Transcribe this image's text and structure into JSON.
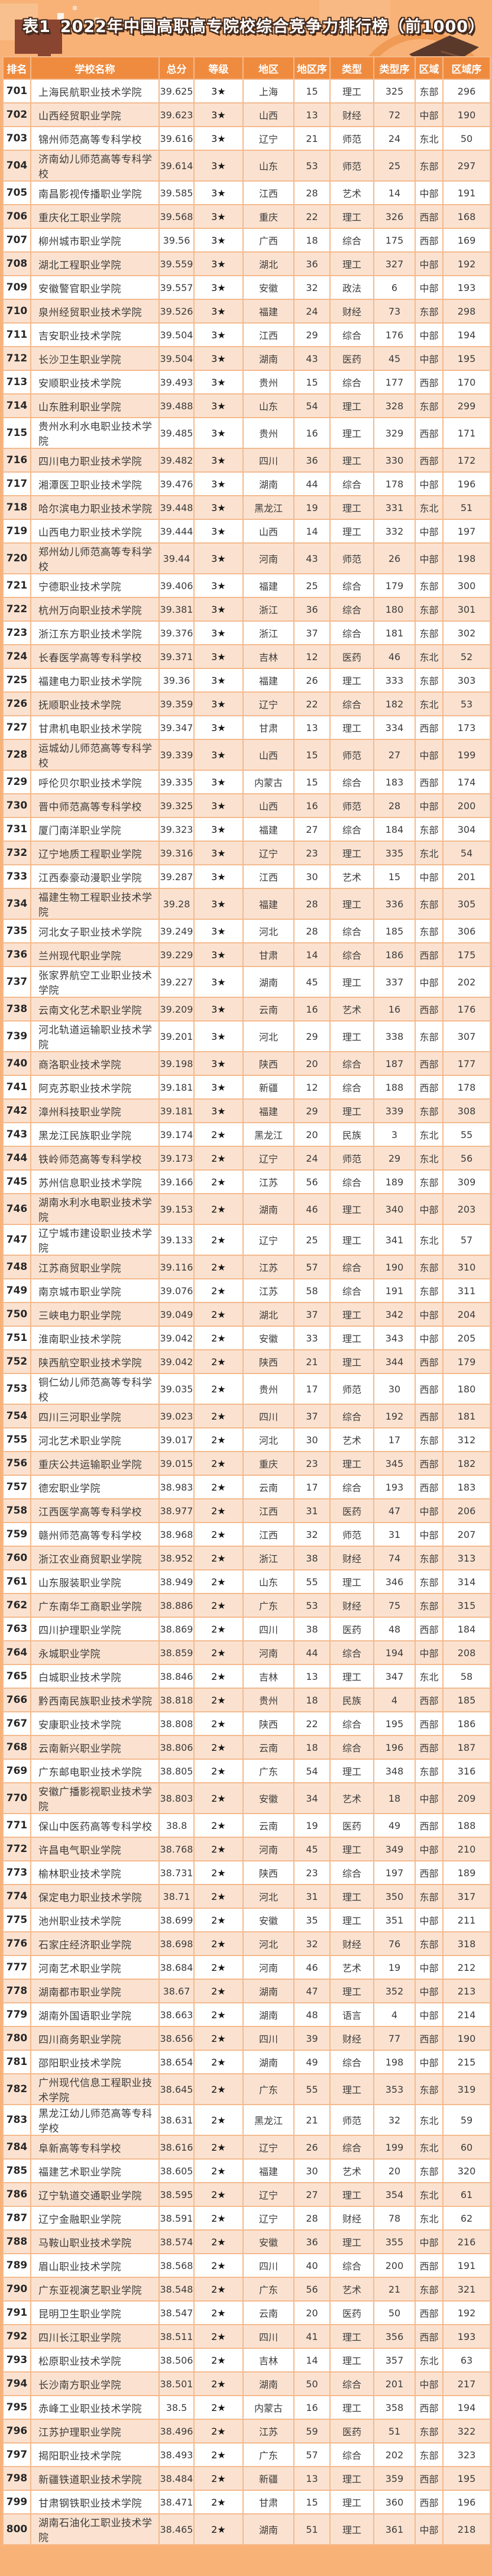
{
  "title_label": "表1",
  "title_text": "2022年中国高职高专院校综合竞争力排行榜（前1000）",
  "colors": {
    "banner_bg": "#F8B277",
    "header_bg": "#EF8B3F",
    "row_bg": "#FFFFFF",
    "row_alt_bg": "#FBE2D0",
    "border": "#F4BA8E",
    "title_fill": "#FFFFFF",
    "title_outline": "#462B1D",
    "label_block": "#8A4531",
    "cap": "#5A392B",
    "circle": "#F09B55",
    "text": "#3B3B3B"
  },
  "decorations": [
    "circle-decoration",
    "graduation-cap-icon",
    "pixel-squares",
    "title-label-block"
  ],
  "table": {
    "columns": [
      "排名",
      "学校名称",
      "总分",
      "等级",
      "地区",
      "地区序",
      "类型",
      "类型序",
      "区域",
      "区域序"
    ],
    "rows": [
      [
        "701",
        "上海民航职业技术学院",
        "39.625",
        "3★",
        "上海",
        "15",
        "理工",
        "325",
        "东部",
        "296"
      ],
      [
        "702",
        "山西经贸职业学院",
        "39.623",
        "3★",
        "山西",
        "13",
        "财经",
        "72",
        "中部",
        "190"
      ],
      [
        "703",
        "锦州师范高等专科学校",
        "39.616",
        "3★",
        "辽宁",
        "21",
        "师范",
        "24",
        "东北",
        "50"
      ],
      [
        "704",
        "济南幼儿师范高等专科学校",
        "39.614",
        "3★",
        "山东",
        "53",
        "师范",
        "25",
        "东部",
        "297"
      ],
      [
        "705",
        "南昌影视传播职业学院",
        "39.585",
        "3★",
        "江西",
        "28",
        "艺术",
        "14",
        "中部",
        "191"
      ],
      [
        "706",
        "重庆化工职业学院",
        "39.568",
        "3★",
        "重庆",
        "22",
        "理工",
        "326",
        "西部",
        "168"
      ],
      [
        "707",
        "柳州城市职业学院",
        "39.56",
        "3★",
        "广西",
        "18",
        "综合",
        "175",
        "西部",
        "169"
      ],
      [
        "708",
        "湖北工程职业学院",
        "39.559",
        "3★",
        "湖北",
        "36",
        "理工",
        "327",
        "中部",
        "192"
      ],
      [
        "709",
        "安徽警官职业学院",
        "39.557",
        "3★",
        "安徽",
        "32",
        "政法",
        "6",
        "中部",
        "193"
      ],
      [
        "710",
        "泉州经贸职业技术学院",
        "39.526",
        "3★",
        "福建",
        "24",
        "财经",
        "73",
        "东部",
        "298"
      ],
      [
        "711",
        "吉安职业技术学院",
        "39.504",
        "3★",
        "江西",
        "29",
        "综合",
        "176",
        "中部",
        "194"
      ],
      [
        "712",
        "长沙卫生职业学院",
        "39.504",
        "3★",
        "湖南",
        "43",
        "医药",
        "45",
        "中部",
        "195"
      ],
      [
        "713",
        "安顺职业技术学院",
        "39.493",
        "3★",
        "贵州",
        "15",
        "综合",
        "177",
        "西部",
        "170"
      ],
      [
        "714",
        "山东胜利职业学院",
        "39.488",
        "3★",
        "山东",
        "54",
        "理工",
        "328",
        "东部",
        "299"
      ],
      [
        "715",
        "贵州水利水电职业技术学院",
        "39.485",
        "3★",
        "贵州",
        "16",
        "理工",
        "329",
        "西部",
        "171"
      ],
      [
        "716",
        "四川电力职业技术学院",
        "39.482",
        "3★",
        "四川",
        "36",
        "理工",
        "330",
        "西部",
        "172"
      ],
      [
        "717",
        "湘潭医卫职业技术学院",
        "39.476",
        "3★",
        "湖南",
        "44",
        "综合",
        "178",
        "中部",
        "196"
      ],
      [
        "718",
        "哈尔滨电力职业技术学院",
        "39.448",
        "3★",
        "黑龙江",
        "19",
        "理工",
        "331",
        "东北",
        "51"
      ],
      [
        "719",
        "山西电力职业技术学院",
        "39.444",
        "3★",
        "山西",
        "14",
        "理工",
        "332",
        "中部",
        "197"
      ],
      [
        "720",
        "郑州幼儿师范高等专科学校",
        "39.44",
        "3★",
        "河南",
        "43",
        "师范",
        "26",
        "中部",
        "198"
      ],
      [
        "721",
        "宁德职业技术学院",
        "39.406",
        "3★",
        "福建",
        "25",
        "综合",
        "179",
        "东部",
        "300"
      ],
      [
        "722",
        "杭州万向职业技术学院",
        "39.381",
        "3★",
        "浙江",
        "36",
        "综合",
        "180",
        "东部",
        "301"
      ],
      [
        "723",
        "浙江东方职业技术学院",
        "39.376",
        "3★",
        "浙江",
        "37",
        "综合",
        "181",
        "东部",
        "302"
      ],
      [
        "724",
        "长春医学高等专科学校",
        "39.371",
        "3★",
        "吉林",
        "12",
        "医药",
        "46",
        "东北",
        "52"
      ],
      [
        "725",
        "福建电力职业技术学院",
        "39.36",
        "3★",
        "福建",
        "26",
        "理工",
        "333",
        "东部",
        "303"
      ],
      [
        "726",
        "抚顺职业技术学院",
        "39.359",
        "3★",
        "辽宁",
        "22",
        "综合",
        "182",
        "东北",
        "53"
      ],
      [
        "727",
        "甘肃机电职业技术学院",
        "39.347",
        "3★",
        "甘肃",
        "13",
        "理工",
        "334",
        "西部",
        "173"
      ],
      [
        "728",
        "运城幼儿师范高等专科学校",
        "39.339",
        "3★",
        "山西",
        "15",
        "师范",
        "27",
        "中部",
        "199"
      ],
      [
        "729",
        "呼伦贝尔职业技术学院",
        "39.335",
        "3★",
        "内蒙古",
        "15",
        "综合",
        "183",
        "西部",
        "174"
      ],
      [
        "730",
        "晋中师范高等专科学校",
        "39.325",
        "3★",
        "山西",
        "16",
        "师范",
        "28",
        "中部",
        "200"
      ],
      [
        "731",
        "厦门南洋职业学院",
        "39.323",
        "3★",
        "福建",
        "27",
        "综合",
        "184",
        "东部",
        "304"
      ],
      [
        "732",
        "辽宁地质工程职业学院",
        "39.316",
        "3★",
        "辽宁",
        "23",
        "理工",
        "335",
        "东北",
        "54"
      ],
      [
        "733",
        "江西泰豪动漫职业学院",
        "39.287",
        "3★",
        "江西",
        "30",
        "艺术",
        "15",
        "中部",
        "201"
      ],
      [
        "734",
        "福建生物工程职业技术学院",
        "39.28",
        "3★",
        "福建",
        "28",
        "理工",
        "336",
        "东部",
        "305"
      ],
      [
        "735",
        "河北女子职业技术学院",
        "39.249",
        "3★",
        "河北",
        "28",
        "综合",
        "185",
        "东部",
        "306"
      ],
      [
        "736",
        "兰州现代职业学院",
        "39.229",
        "3★",
        "甘肃",
        "14",
        "综合",
        "186",
        "西部",
        "175"
      ],
      [
        "737",
        "张家界航空工业职业技术学院",
        "39.227",
        "3★",
        "湖南",
        "45",
        "理工",
        "337",
        "中部",
        "202"
      ],
      [
        "738",
        "云南文化艺术职业学院",
        "39.209",
        "3★",
        "云南",
        "16",
        "艺术",
        "16",
        "西部",
        "176"
      ],
      [
        "739",
        "河北轨道运输职业技术学院",
        "39.201",
        "3★",
        "河北",
        "29",
        "理工",
        "338",
        "东部",
        "307"
      ],
      [
        "740",
        "商洛职业技术学院",
        "39.198",
        "3★",
        "陕西",
        "20",
        "综合",
        "187",
        "西部",
        "177"
      ],
      [
        "741",
        "阿克苏职业技术学院",
        "39.181",
        "3★",
        "新疆",
        "12",
        "综合",
        "188",
        "西部",
        "178"
      ],
      [
        "742",
        "漳州科技职业学院",
        "39.181",
        "3★",
        "福建",
        "29",
        "理工",
        "339",
        "东部",
        "308"
      ],
      [
        "743",
        "黑龙江民族职业学院",
        "39.174",
        "2★",
        "黑龙江",
        "20",
        "民族",
        "3",
        "东北",
        "55"
      ],
      [
        "744",
        "铁岭师范高等专科学校",
        "39.173",
        "2★",
        "辽宁",
        "24",
        "师范",
        "29",
        "东北",
        "56"
      ],
      [
        "745",
        "苏州信息职业技术学院",
        "39.166",
        "2★",
        "江苏",
        "56",
        "综合",
        "189",
        "东部",
        "309"
      ],
      [
        "746",
        "湖南水利水电职业技术学院",
        "39.153",
        "2★",
        "湖南",
        "46",
        "理工",
        "340",
        "中部",
        "203"
      ],
      [
        "747",
        "辽宁城市建设职业技术学院",
        "39.133",
        "2★",
        "辽宁",
        "25",
        "理工",
        "341",
        "东北",
        "57"
      ],
      [
        "748",
        "江苏商贸职业学院",
        "39.116",
        "2★",
        "江苏",
        "57",
        "综合",
        "190",
        "东部",
        "310"
      ],
      [
        "749",
        "南京城市职业学院",
        "39.076",
        "2★",
        "江苏",
        "58",
        "综合",
        "191",
        "东部",
        "311"
      ],
      [
        "750",
        "三峡电力职业学院",
        "39.049",
        "2★",
        "湖北",
        "37",
        "理工",
        "342",
        "中部",
        "204"
      ],
      [
        "751",
        "淮南职业技术学院",
        "39.042",
        "2★",
        "安徽",
        "33",
        "理工",
        "343",
        "中部",
        "205"
      ],
      [
        "752",
        "陕西航空职业技术学院",
        "39.042",
        "2★",
        "陕西",
        "21",
        "理工",
        "344",
        "西部",
        "179"
      ],
      [
        "753",
        "铜仁幼儿师范高等专科学校",
        "39.035",
        "2★",
        "贵州",
        "17",
        "师范",
        "30",
        "西部",
        "180"
      ],
      [
        "754",
        "四川三河职业学院",
        "39.023",
        "2★",
        "四川",
        "37",
        "综合",
        "192",
        "西部",
        "181"
      ],
      [
        "755",
        "河北艺术职业学院",
        "39.017",
        "2★",
        "河北",
        "30",
        "艺术",
        "17",
        "东部",
        "312"
      ],
      [
        "756",
        "重庆公共运输职业学院",
        "39.015",
        "2★",
        "重庆",
        "23",
        "理工",
        "345",
        "西部",
        "182"
      ],
      [
        "757",
        "德宏职业学院",
        "38.983",
        "2★",
        "云南",
        "17",
        "综合",
        "193",
        "西部",
        "183"
      ],
      [
        "758",
        "江西医学高等专科学校",
        "38.977",
        "2★",
        "江西",
        "31",
        "医药",
        "47",
        "中部",
        "206"
      ],
      [
        "759",
        "赣州师范高等专科学校",
        "38.968",
        "2★",
        "江西",
        "32",
        "师范",
        "31",
        "中部",
        "207"
      ],
      [
        "760",
        "浙江农业商贸职业学院",
        "38.952",
        "2★",
        "浙江",
        "38",
        "财经",
        "74",
        "东部",
        "313"
      ],
      [
        "761",
        "山东服装职业学院",
        "38.949",
        "2★",
        "山东",
        "55",
        "理工",
        "346",
        "东部",
        "314"
      ],
      [
        "762",
        "广东南华工商职业学院",
        "38.886",
        "2★",
        "广东",
        "53",
        "财经",
        "75",
        "东部",
        "315"
      ],
      [
        "763",
        "四川护理职业学院",
        "38.869",
        "2★",
        "四川",
        "38",
        "医药",
        "48",
        "西部",
        "184"
      ],
      [
        "764",
        "永城职业学院",
        "38.859",
        "2★",
        "河南",
        "44",
        "综合",
        "194",
        "中部",
        "208"
      ],
      [
        "765",
        "白城职业技术学院",
        "38.846",
        "2★",
        "吉林",
        "13",
        "理工",
        "347",
        "东北",
        "58"
      ],
      [
        "766",
        "黔西南民族职业技术学院",
        "38.818",
        "2★",
        "贵州",
        "18",
        "民族",
        "4",
        "西部",
        "185"
      ],
      [
        "767",
        "安康职业技术学院",
        "38.808",
        "2★",
        "陕西",
        "22",
        "综合",
        "195",
        "西部",
        "186"
      ],
      [
        "768",
        "云南新兴职业学院",
        "38.806",
        "2★",
        "云南",
        "18",
        "综合",
        "196",
        "西部",
        "187"
      ],
      [
        "769",
        "广东邮电职业技术学院",
        "38.805",
        "2★",
        "广东",
        "54",
        "理工",
        "348",
        "东部",
        "316"
      ],
      [
        "770",
        "安徽广播影视职业技术学院",
        "38.803",
        "2★",
        "安徽",
        "34",
        "艺术",
        "18",
        "中部",
        "209"
      ],
      [
        "771",
        "保山中医药高等专科学校",
        "38.8",
        "2★",
        "云南",
        "19",
        "医药",
        "49",
        "西部",
        "188"
      ],
      [
        "772",
        "许昌电气职业学院",
        "38.768",
        "2★",
        "河南",
        "45",
        "理工",
        "349",
        "中部",
        "210"
      ],
      [
        "773",
        "榆林职业技术学院",
        "38.731",
        "2★",
        "陕西",
        "23",
        "综合",
        "197",
        "西部",
        "189"
      ],
      [
        "774",
        "保定电力职业技术学院",
        "38.71",
        "2★",
        "河北",
        "31",
        "理工",
        "350",
        "东部",
        "317"
      ],
      [
        "775",
        "池州职业技术学院",
        "38.699",
        "2★",
        "安徽",
        "35",
        "理工",
        "351",
        "中部",
        "211"
      ],
      [
        "776",
        "石家庄经济职业学院",
        "38.698",
        "2★",
        "河北",
        "32",
        "财经",
        "76",
        "东部",
        "318"
      ],
      [
        "777",
        "河南艺术职业学院",
        "38.684",
        "2★",
        "河南",
        "46",
        "艺术",
        "19",
        "中部",
        "212"
      ],
      [
        "778",
        "湖南都市职业学院",
        "38.67",
        "2★",
        "湖南",
        "47",
        "理工",
        "352",
        "中部",
        "213"
      ],
      [
        "779",
        "湖南外国语职业学院",
        "38.663",
        "2★",
        "湖南",
        "48",
        "语言",
        "4",
        "中部",
        "214"
      ],
      [
        "780",
        "四川商务职业学院",
        "38.656",
        "2★",
        "四川",
        "39",
        "财经",
        "77",
        "西部",
        "190"
      ],
      [
        "781",
        "邵阳职业技术学院",
        "38.654",
        "2★",
        "湖南",
        "49",
        "综合",
        "198",
        "中部",
        "215"
      ],
      [
        "782",
        "广州现代信息工程职业技术学院",
        "38.645",
        "2★",
        "广东",
        "55",
        "理工",
        "353",
        "东部",
        "319"
      ],
      [
        "783",
        "黑龙江幼儿师范高等专科学校",
        "38.631",
        "2★",
        "黑龙江",
        "21",
        "师范",
        "32",
        "东北",
        "59"
      ],
      [
        "784",
        "阜新高等专科学校",
        "38.616",
        "2★",
        "辽宁",
        "26",
        "综合",
        "199",
        "东北",
        "60"
      ],
      [
        "785",
        "福建艺术职业学院",
        "38.605",
        "2★",
        "福建",
        "30",
        "艺术",
        "20",
        "东部",
        "320"
      ],
      [
        "786",
        "辽宁轨道交通职业学院",
        "38.595",
        "2★",
        "辽宁",
        "27",
        "理工",
        "354",
        "东北",
        "61"
      ],
      [
        "787",
        "辽宁金融职业学院",
        "38.591",
        "2★",
        "辽宁",
        "28",
        "财经",
        "78",
        "东北",
        "62"
      ],
      [
        "788",
        "马鞍山职业技术学院",
        "38.574",
        "2★",
        "安徽",
        "36",
        "理工",
        "355",
        "中部",
        "216"
      ],
      [
        "789",
        "眉山职业技术学院",
        "38.568",
        "2★",
        "四川",
        "40",
        "综合",
        "200",
        "西部",
        "191"
      ],
      [
        "790",
        "广东亚视演艺职业学院",
        "38.548",
        "2★",
        "广东",
        "56",
        "艺术",
        "21",
        "东部",
        "321"
      ],
      [
        "791",
        "昆明卫生职业学院",
        "38.547",
        "2★",
        "云南",
        "20",
        "医药",
        "50",
        "西部",
        "192"
      ],
      [
        "792",
        "四川长江职业学院",
        "38.511",
        "2★",
        "四川",
        "41",
        "理工",
        "356",
        "西部",
        "193"
      ],
      [
        "793",
        "松原职业技术学院",
        "38.506",
        "2★",
        "吉林",
        "14",
        "理工",
        "357",
        "东北",
        "63"
      ],
      [
        "794",
        "长沙南方职业学院",
        "38.501",
        "2★",
        "湖南",
        "50",
        "综合",
        "201",
        "中部",
        "217"
      ],
      [
        "795",
        "赤峰工业职业技术学院",
        "38.5",
        "2★",
        "内蒙古",
        "16",
        "理工",
        "358",
        "西部",
        "194"
      ],
      [
        "796",
        "江苏护理职业学院",
        "38.496",
        "2★",
        "江苏",
        "59",
        "医药",
        "51",
        "东部",
        "322"
      ],
      [
        "797",
        "揭阳职业技术学院",
        "38.493",
        "2★",
        "广东",
        "57",
        "综合",
        "202",
        "东部",
        "323"
      ],
      [
        "798",
        "新疆铁道职业技术学院",
        "38.484",
        "2★",
        "新疆",
        "13",
        "理工",
        "359",
        "西部",
        "195"
      ],
      [
        "799",
        "甘肃钢铁职业技术学院",
        "38.471",
        "2★",
        "甘肃",
        "15",
        "理工",
        "360",
        "西部",
        "196"
      ],
      [
        "800",
        "湖南石油化工职业技术学院",
        "38.465",
        "2★",
        "湖南",
        "51",
        "理工",
        "361",
        "中部",
        "218"
      ]
    ]
  }
}
